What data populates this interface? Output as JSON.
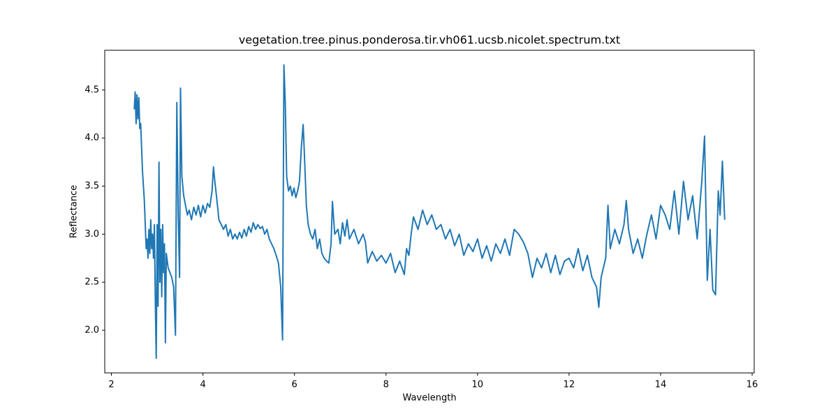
{
  "chart_data": {
    "type": "line",
    "title": "vegetation.tree.pinus.ponderosa.tir.vh061.ucsb.nicolet.spectrum.txt",
    "x_label": "Wavelength",
    "y_label": "Reflectance",
    "color": "#1f77b4",
    "x": [
      2.5,
      2.52,
      2.54,
      2.56,
      2.58,
      2.6,
      2.62,
      2.64,
      2.66,
      2.68,
      2.7,
      2.72,
      2.74,
      2.76,
      2.78,
      2.8,
      2.82,
      2.84,
      2.86,
      2.88,
      2.9,
      2.92,
      2.94,
      2.96,
      2.98,
      3.0,
      3.02,
      3.04,
      3.06,
      3.08,
      3.1,
      3.12,
      3.14,
      3.16,
      3.18,
      3.2,
      3.24,
      3.28,
      3.32,
      3.36,
      3.4,
      3.43,
      3.46,
      3.49,
      3.51,
      3.54,
      3.58,
      3.62,
      3.66,
      3.7,
      3.75,
      3.8,
      3.85,
      3.9,
      3.95,
      4.0,
      4.05,
      4.1,
      4.15,
      4.2,
      4.23,
      4.26,
      4.3,
      4.35,
      4.4,
      4.45,
      4.5,
      4.55,
      4.6,
      4.65,
      4.7,
      4.75,
      4.8,
      4.85,
      4.9,
      4.95,
      5.0,
      5.05,
      5.1,
      5.15,
      5.2,
      5.25,
      5.3,
      5.35,
      5.4,
      5.45,
      5.5,
      5.55,
      5.6,
      5.65,
      5.7,
      5.74,
      5.77,
      5.8,
      5.83,
      5.87,
      5.91,
      5.95,
      5.99,
      6.03,
      6.07,
      6.11,
      6.15,
      6.19,
      6.22,
      6.26,
      6.3,
      6.35,
      6.4,
      6.45,
      6.5,
      6.55,
      6.6,
      6.65,
      6.7,
      6.75,
      6.8,
      6.83,
      6.88,
      6.95,
      7.0,
      7.05,
      7.1,
      7.15,
      7.2,
      7.3,
      7.4,
      7.5,
      7.55,
      7.6,
      7.7,
      7.8,
      7.9,
      8.0,
      8.1,
      8.2,
      8.3,
      8.4,
      8.45,
      8.5,
      8.55,
      8.6,
      8.7,
      8.8,
      8.9,
      9.0,
      9.1,
      9.2,
      9.3,
      9.4,
      9.5,
      9.6,
      9.7,
      9.8,
      9.9,
      10.0,
      10.1,
      10.2,
      10.3,
      10.4,
      10.5,
      10.6,
      10.7,
      10.8,
      10.9,
      11.0,
      11.1,
      11.2,
      11.3,
      11.4,
      11.5,
      11.6,
      11.7,
      11.8,
      11.9,
      12.0,
      12.1,
      12.2,
      12.3,
      12.4,
      12.5,
      12.6,
      12.65,
      12.7,
      12.8,
      12.85,
      12.9,
      13.0,
      13.1,
      13.2,
      13.25,
      13.3,
      13.4,
      13.5,
      13.6,
      13.7,
      13.8,
      13.9,
      14.0,
      14.1,
      14.2,
      14.3,
      14.4,
      14.5,
      14.6,
      14.7,
      14.8,
      14.9,
      14.96,
      15.02,
      15.08,
      15.14,
      15.2,
      15.26,
      15.3,
      15.35,
      15.4
    ],
    "values": [
      4.3,
      4.48,
      4.15,
      4.45,
      4.2,
      4.42,
      4.1,
      4.15,
      3.9,
      3.65,
      3.5,
      3.35,
      3.1,
      2.85,
      2.95,
      2.75,
      3.05,
      2.8,
      3.15,
      2.85,
      3.0,
      2.75,
      3.1,
      2.3,
      1.71,
      3.1,
      2.25,
      3.75,
      2.5,
      3.05,
      2.35,
      3.1,
      2.6,
      2.9,
      1.87,
      2.8,
      2.65,
      2.6,
      2.55,
      2.45,
      1.95,
      4.37,
      3.2,
      2.55,
      4.52,
      3.6,
      3.4,
      3.3,
      3.2,
      3.25,
      3.15,
      3.28,
      3.2,
      3.3,
      3.18,
      3.3,
      3.22,
      3.32,
      3.28,
      3.45,
      3.7,
      3.55,
      3.38,
      3.15,
      3.1,
      3.05,
      3.1,
      2.98,
      3.05,
      2.95,
      3.0,
      2.95,
      3.02,
      2.96,
      3.05,
      2.98,
      3.08,
      3.02,
      3.12,
      3.05,
      3.1,
      3.06,
      3.08,
      3.0,
      3.05,
      2.95,
      2.9,
      2.85,
      2.78,
      2.7,
      2.45,
      1.9,
      4.76,
      4.35,
      3.6,
      3.45,
      3.5,
      3.4,
      3.48,
      3.38,
      3.45,
      3.55,
      3.9,
      4.14,
      3.8,
      3.3,
      3.1,
      3.0,
      2.95,
      3.05,
      2.85,
      2.95,
      2.8,
      2.75,
      2.72,
      2.7,
      2.9,
      3.34,
      3.0,
      3.05,
      2.9,
      3.12,
      2.98,
      3.15,
      2.95,
      3.05,
      2.9,
      3.0,
      2.92,
      2.7,
      2.82,
      2.72,
      2.78,
      2.7,
      2.8,
      2.6,
      2.72,
      2.58,
      2.85,
      2.78,
      3.0,
      3.18,
      3.05,
      3.25,
      3.1,
      3.2,
      3.05,
      3.1,
      2.95,
      3.05,
      2.88,
      3.0,
      2.78,
      2.9,
      2.82,
      2.95,
      2.75,
      2.88,
      2.72,
      2.9,
      2.8,
      2.95,
      2.78,
      3.05,
      3.0,
      2.92,
      2.8,
      2.55,
      2.75,
      2.65,
      2.8,
      2.6,
      2.78,
      2.58,
      2.72,
      2.75,
      2.65,
      2.85,
      2.62,
      2.78,
      2.55,
      2.45,
      2.24,
      2.55,
      2.75,
      3.3,
      2.85,
      3.05,
      2.9,
      3.1,
      3.35,
      3.05,
      2.8,
      2.95,
      2.75,
      3.0,
      3.2,
      2.95,
      3.3,
      3.2,
      3.05,
      3.45,
      3.0,
      3.55,
      3.15,
      3.4,
      2.95,
      3.55,
      4.02,
      2.52,
      3.05,
      2.42,
      2.37,
      3.45,
      3.2,
      3.76,
      3.15
    ],
    "xlim": [
      1.855,
      16.045
    ],
    "ylim": [
      1.557,
      4.913
    ],
    "xticks": [
      2,
      4,
      6,
      8,
      10,
      12,
      14,
      16
    ],
    "yticks": [
      {
        "value": 2.0,
        "label": "2.0"
      },
      {
        "value": 2.5,
        "label": "2.5"
      },
      {
        "value": 3.0,
        "label": "3.0"
      },
      {
        "value": 3.5,
        "label": "3.5"
      },
      {
        "value": 4.0,
        "label": "4.0"
      },
      {
        "value": 4.5,
        "label": "4.5"
      }
    ]
  }
}
